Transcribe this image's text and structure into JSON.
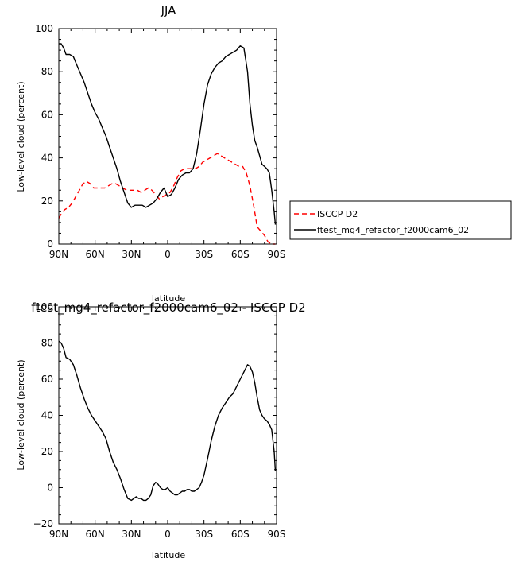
{
  "chart_data": [
    {
      "type": "line",
      "title": "JJA",
      "xlabel": "latitude",
      "ylabel": "Low-level cloud (percent)",
      "xlim": [
        -90,
        90
      ],
      "ylim": [
        0,
        100
      ],
      "x_ticks": [
        -90,
        -60,
        -30,
        0,
        30,
        60,
        90
      ],
      "x_tick_labels": [
        "90N",
        "60N",
        "30N",
        "0",
        "30S",
        "60S",
        "90S"
      ],
      "y_ticks": [
        0,
        20,
        40,
        60,
        80,
        100
      ],
      "y_tick_labels": [
        "0",
        "20",
        "40",
        "60",
        "80",
        "100"
      ],
      "legend_position": "right",
      "series": [
        {
          "name": "ISCCP D2",
          "color": "#ff0000",
          "dash": "dashed",
          "x": [
            -90,
            -88,
            -85,
            -82,
            -79,
            -76,
            -73,
            -70,
            -67,
            -64,
            -61,
            -58,
            -55,
            -52,
            -49,
            -46,
            -43,
            -40,
            -37,
            -34,
            -31,
            -28,
            -25,
            -22,
            -19,
            -16,
            -13,
            -10,
            -7,
            -4,
            -1,
            2,
            5,
            8,
            11,
            14,
            17,
            20,
            23,
            26,
            29,
            32,
            35,
            38,
            41,
            44,
            47,
            50,
            53,
            56,
            59,
            62,
            65,
            68,
            71,
            74,
            77,
            80,
            83,
            86,
            89
          ],
          "y": [
            12,
            14,
            16,
            17,
            19,
            22,
            25,
            28,
            29,
            28,
            26,
            26,
            26,
            26,
            27,
            28,
            28,
            27,
            26,
            25,
            25,
            25,
            25,
            24,
            25,
            26,
            25,
            23,
            21,
            22,
            23,
            24,
            27,
            31,
            34,
            35,
            35,
            35,
            35,
            36,
            38,
            39,
            40,
            41,
            42,
            41,
            40,
            39,
            38,
            37,
            36,
            36,
            33,
            27,
            18,
            8,
            6,
            4,
            1,
            0,
            0
          ]
        },
        {
          "name": "ftest_mg4_refactor_f2000cam6_02",
          "color": "#000000",
          "dash": "solid",
          "x": [
            -90,
            -88,
            -86,
            -84,
            -81,
            -78,
            -75,
            -72,
            -69,
            -66,
            -63,
            -60,
            -57,
            -54,
            -51,
            -48,
            -45,
            -42,
            -39,
            -36,
            -33,
            -30,
            -27,
            -24,
            -21,
            -18,
            -15,
            -12,
            -9,
            -6,
            -3,
            0,
            3,
            6,
            9,
            12,
            15,
            18,
            21,
            24,
            27,
            30,
            33,
            36,
            39,
            42,
            45,
            48,
            51,
            54,
            57,
            60,
            63,
            66,
            68,
            70,
            72,
            74,
            76,
            78,
            80,
            82,
            84,
            86,
            88,
            89
          ],
          "y": [
            93,
            93,
            91,
            88,
            88,
            87,
            83,
            79,
            75,
            70,
            65,
            61,
            58,
            54,
            50,
            45,
            40,
            35,
            29,
            24,
            19,
            17,
            18,
            18,
            18,
            17,
            18,
            19,
            21,
            24,
            26,
            22,
            23,
            26,
            30,
            32,
            33,
            33,
            35,
            42,
            53,
            65,
            74,
            79,
            82,
            84,
            85,
            87,
            88,
            89,
            90,
            92,
            91,
            80,
            65,
            55,
            48,
            45,
            41,
            37,
            36,
            35,
            33,
            25,
            15,
            9
          ]
        }
      ]
    },
    {
      "type": "line",
      "title": "ftest_mg4_refactor_f2000cam6_02 - ISCCP D2",
      "xlabel": "latitude",
      "ylabel": "Low-level cloud (percent)",
      "xlim": [
        -90,
        90
      ],
      "ylim": [
        -20,
        100
      ],
      "x_ticks": [
        -90,
        -60,
        -30,
        0,
        30,
        60,
        90
      ],
      "x_tick_labels": [
        "90N",
        "60N",
        "30N",
        "0",
        "30S",
        "60S",
        "90S"
      ],
      "y_ticks": [
        -20,
        0,
        20,
        40,
        60,
        80,
        100
      ],
      "y_tick_labels": [
        "−20",
        "0",
        "20",
        "40",
        "60",
        "80",
        "100"
      ],
      "series": [
        {
          "color": "#000000",
          "dash": "solid",
          "x": [
            -90,
            -88,
            -86,
            -84,
            -81,
            -78,
            -75,
            -72,
            -69,
            -66,
            -63,
            -60,
            -57,
            -54,
            -51,
            -48,
            -45,
            -42,
            -39,
            -36,
            -33,
            -30,
            -28,
            -26,
            -24,
            -22,
            -20,
            -18,
            -16,
            -14,
            -12,
            -10,
            -8,
            -6,
            -4,
            -2,
            0,
            2,
            4,
            6,
            8,
            10,
            12,
            14,
            16,
            18,
            20,
            22,
            24,
            26,
            28,
            30,
            33,
            36,
            39,
            42,
            45,
            48,
            51,
            54,
            57,
            60,
            63,
            66,
            68,
            70,
            72,
            74,
            76,
            78,
            80,
            82,
            84,
            86,
            88,
            89
          ],
          "y": [
            81,
            80,
            77,
            72,
            71,
            68,
            62,
            55,
            49,
            44,
            40,
            37,
            34,
            31,
            27,
            20,
            14,
            10,
            5,
            -1,
            -6,
            -7,
            -6,
            -5,
            -6,
            -6,
            -7,
            -7,
            -6,
            -4,
            1,
            3,
            2,
            0,
            -1,
            -1,
            0,
            -2,
            -3,
            -4,
            -4,
            -3,
            -2,
            -2,
            -1,
            -1,
            -2,
            -2,
            -1,
            0,
            3,
            7,
            16,
            26,
            34,
            40,
            44,
            47,
            50,
            52,
            56,
            60,
            64,
            68,
            67,
            64,
            58,
            50,
            43,
            40,
            38,
            37,
            35,
            32,
            20,
            9
          ]
        }
      ]
    }
  ]
}
